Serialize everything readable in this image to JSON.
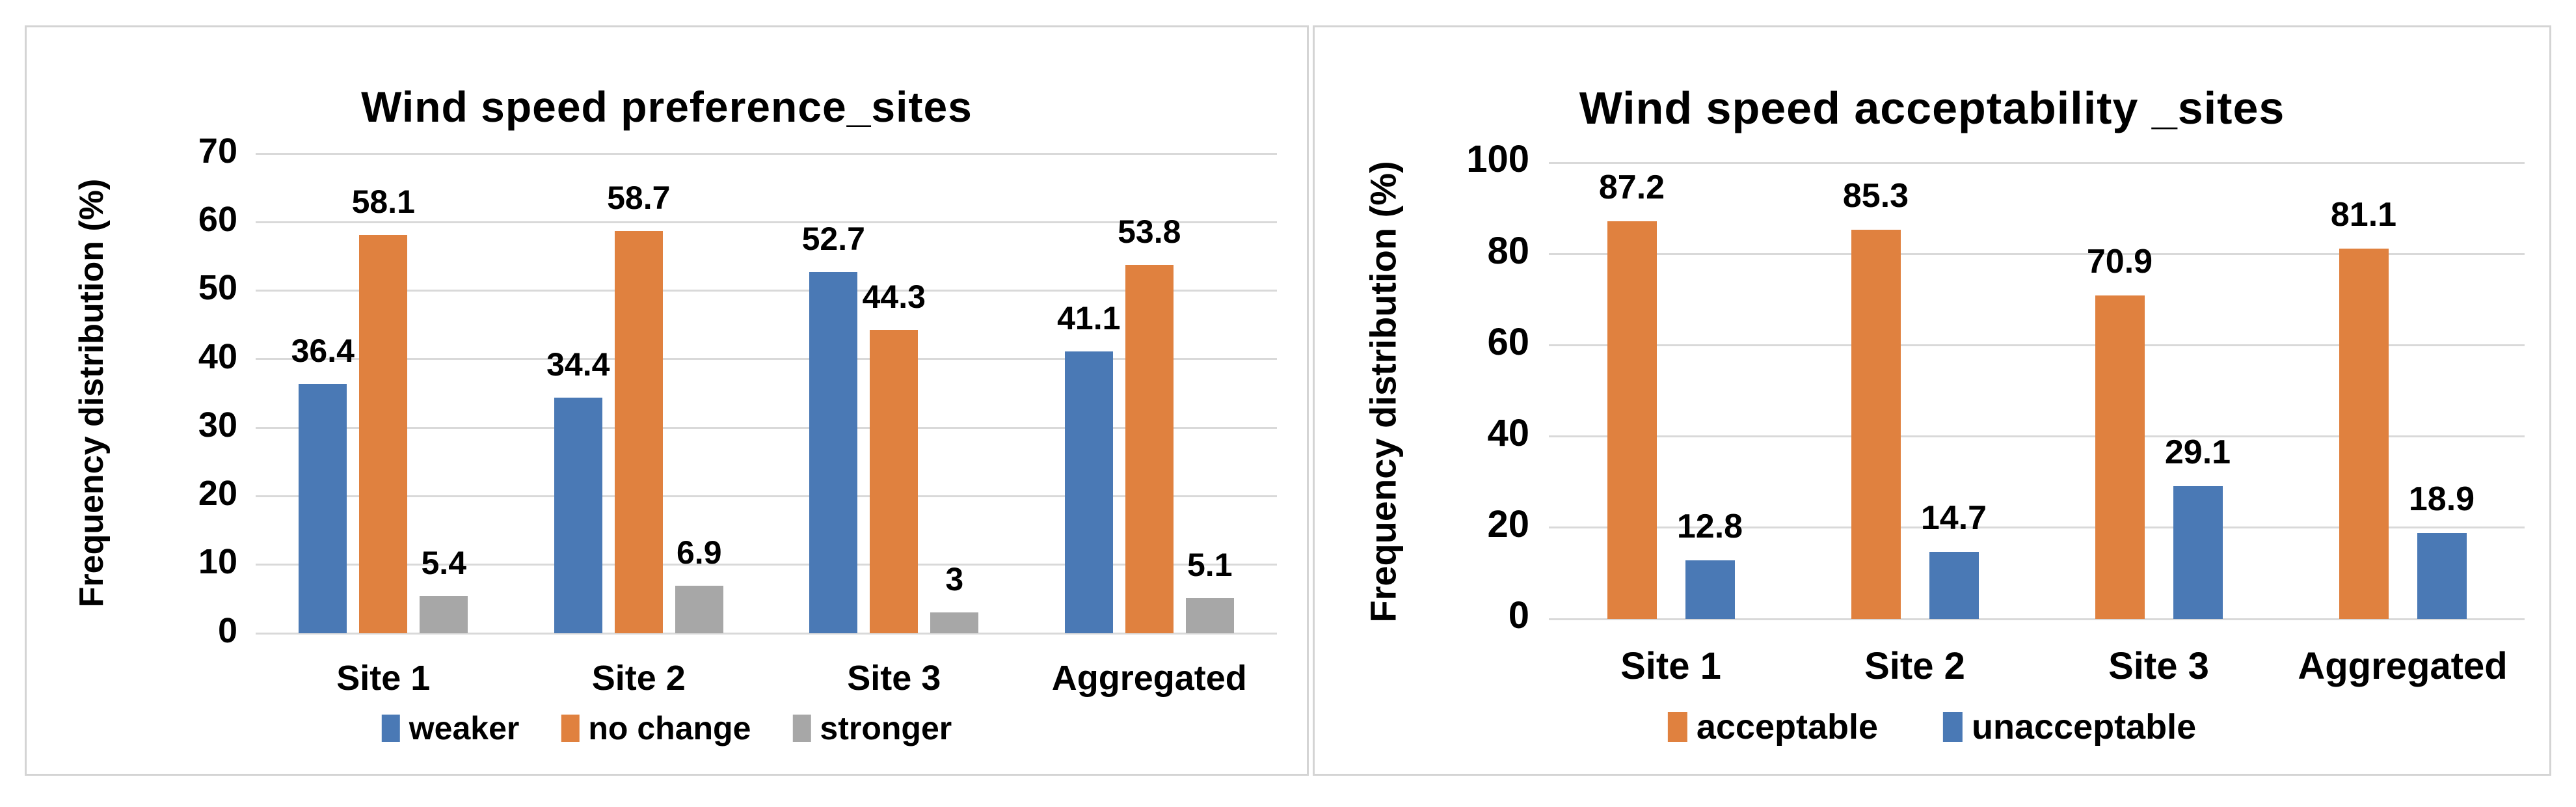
{
  "page": {
    "background": "#ffffff",
    "panel_border_color": "#d4d4d4",
    "gridline_color": "#d9d9d9",
    "text_color": "#000000"
  },
  "chart_data": [
    {
      "type": "bar",
      "title": "Wind speed preference_sites",
      "xlabel": "",
      "ylabel": "Frequency distribution (%)",
      "categories": [
        "Site 1",
        "Site 2",
        "Site 3",
        "Aggregated"
      ],
      "series": [
        {
          "name": "weaker",
          "color": "#4A79B5",
          "values": [
            36.4,
            34.4,
            52.7,
            41.1
          ]
        },
        {
          "name": "no change",
          "color": "#E0813F",
          "values": [
            58.1,
            58.7,
            44.3,
            53.8
          ]
        },
        {
          "name": "stronger",
          "color": "#A7A7A7",
          "values": [
            5.4,
            6.9,
            3,
            5.1
          ]
        }
      ],
      "ylim": [
        0,
        70
      ],
      "yticks": [
        0,
        10,
        20,
        30,
        40,
        50,
        60,
        70
      ],
      "grid": true,
      "data_labels": true,
      "legend_position": "bottom"
    },
    {
      "type": "bar",
      "title": "Wind speed acceptability _sites",
      "xlabel": "",
      "ylabel": "Frequency distribution (%)",
      "categories": [
        "Site 1",
        "Site 2",
        "Site 3",
        "Aggregated"
      ],
      "series": [
        {
          "name": "acceptable",
          "color": "#E0813F",
          "values": [
            87.2,
            85.3,
            70.9,
            81.1
          ]
        },
        {
          "name": "unacceptable",
          "color": "#4A79B5",
          "values": [
            12.8,
            14.7,
            29.1,
            18.9
          ]
        }
      ],
      "ylim": [
        0,
        100
      ],
      "yticks": [
        0,
        20,
        40,
        60,
        80,
        100
      ],
      "grid": true,
      "data_labels": true,
      "legend_position": "bottom"
    }
  ]
}
